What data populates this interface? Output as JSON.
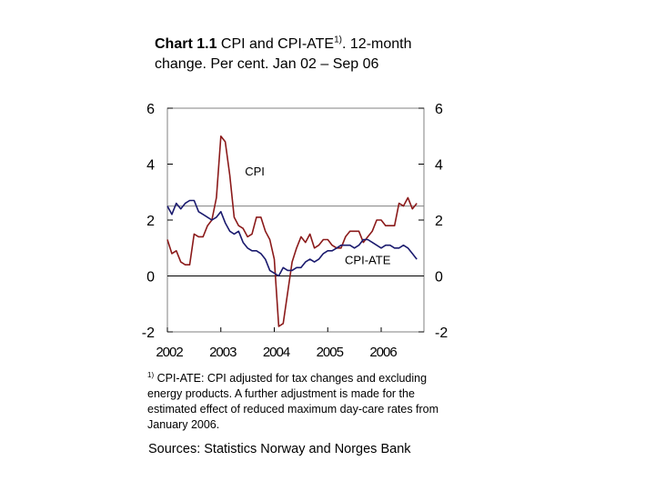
{
  "title": {
    "bold": "Chart 1.1",
    "text1": " CPI and CPI-ATE",
    "sup": "1)",
    "text2": ". 12-month change. Per cent. Jan 02 – Sep 06"
  },
  "footnote": {
    "marker": "1)",
    "text": " CPI-ATE: CPI adjusted for tax changes and excluding energy products. A further adjustment is made for the estimated effect of reduced maximum day-care rates from January 2006."
  },
  "sources": "Sources: Statistics Norway and Norges Bank",
  "chart_data": {
    "type": "line",
    "title": "CPI and CPI-ATE. 12-month change. Per cent. Jan 02 – Sep 06",
    "ylim": [
      -2,
      6
    ],
    "yticks": [
      6,
      4,
      2,
      0,
      -2
    ],
    "ytick_labels": [
      "6",
      "4",
      "2",
      "0",
      "-2"
    ],
    "xlim": [
      2002.0,
      2006.8
    ],
    "xticks": [
      2002,
      2003,
      2004,
      2005,
      2006
    ],
    "xtick_labels": [
      "2002",
      "2003",
      "2004",
      "2005",
      "2006"
    ],
    "reference_line": 2.5,
    "colors": {
      "cpi": "#8b1a1a",
      "cpi_ate": "#1a1a6e",
      "axis": "#000000",
      "reference": "#808080"
    },
    "series": [
      {
        "name": "CPI",
        "label": "CPI",
        "x": [
          2002.0,
          2002.083,
          2002.167,
          2002.25,
          2002.333,
          2002.417,
          2002.5,
          2002.583,
          2002.667,
          2002.75,
          2002.833,
          2002.917,
          2003.0,
          2003.083,
          2003.167,
          2003.25,
          2003.333,
          2003.417,
          2003.5,
          2003.583,
          2003.667,
          2003.75,
          2003.833,
          2003.917,
          2004.0,
          2004.083,
          2004.167,
          2004.25,
          2004.333,
          2004.417,
          2004.5,
          2004.583,
          2004.667,
          2004.75,
          2004.833,
          2004.917,
          2005.0,
          2005.083,
          2005.167,
          2005.25,
          2005.333,
          2005.417,
          2005.5,
          2005.583,
          2005.667,
          2005.75,
          2005.833,
          2005.917,
          2006.0,
          2006.083,
          2006.167,
          2006.25,
          2006.333,
          2006.417,
          2006.5,
          2006.583,
          2006.667
        ],
        "values": [
          1.3,
          0.8,
          0.9,
          0.5,
          0.4,
          0.4,
          1.5,
          1.4,
          1.4,
          1.8,
          2.0,
          2.8,
          5.0,
          4.8,
          3.6,
          2.1,
          1.8,
          1.7,
          1.4,
          1.5,
          2.1,
          2.1,
          1.6,
          1.3,
          0.6,
          -1.8,
          -1.7,
          -0.6,
          0.5,
          1.0,
          1.4,
          1.2,
          1.5,
          1.0,
          1.1,
          1.3,
          1.3,
          1.1,
          1.0,
          1.0,
          1.4,
          1.6,
          1.6,
          1.6,
          1.2,
          1.4,
          1.6,
          2.0,
          2.0,
          1.8,
          1.8,
          1.8,
          2.6,
          2.5,
          2.8,
          2.4,
          2.6
        ]
      },
      {
        "name": "CPI-ATE",
        "label": "CPI-ATE",
        "x": [
          2002.0,
          2002.083,
          2002.167,
          2002.25,
          2002.333,
          2002.417,
          2002.5,
          2002.583,
          2002.667,
          2002.75,
          2002.833,
          2002.917,
          2003.0,
          2003.083,
          2003.167,
          2003.25,
          2003.333,
          2003.417,
          2003.5,
          2003.583,
          2003.667,
          2003.75,
          2003.833,
          2003.917,
          2004.0,
          2004.083,
          2004.167,
          2004.25,
          2004.333,
          2004.417,
          2004.5,
          2004.583,
          2004.667,
          2004.75,
          2004.833,
          2004.917,
          2005.0,
          2005.083,
          2005.167,
          2005.25,
          2005.333,
          2005.417,
          2005.5,
          2005.583,
          2005.667,
          2005.75,
          2005.833,
          2005.917,
          2006.0,
          2006.083,
          2006.167,
          2006.25,
          2006.333,
          2006.417,
          2006.5,
          2006.583,
          2006.667
        ],
        "values": [
          2.5,
          2.2,
          2.6,
          2.4,
          2.6,
          2.7,
          2.7,
          2.3,
          2.2,
          2.1,
          2.0,
          2.1,
          2.3,
          1.9,
          1.6,
          1.5,
          1.6,
          1.2,
          1.0,
          0.9,
          0.9,
          0.8,
          0.6,
          0.2,
          0.1,
          0.0,
          0.3,
          0.2,
          0.2,
          0.3,
          0.3,
          0.5,
          0.6,
          0.5,
          0.6,
          0.8,
          0.9,
          0.9,
          1.0,
          1.1,
          1.1,
          1.1,
          1.0,
          1.1,
          1.3,
          1.3,
          1.2,
          1.1,
          1.0,
          1.1,
          1.1,
          1.0,
          1.0,
          1.1,
          1.0,
          0.8,
          0.6
        ]
      }
    ]
  }
}
